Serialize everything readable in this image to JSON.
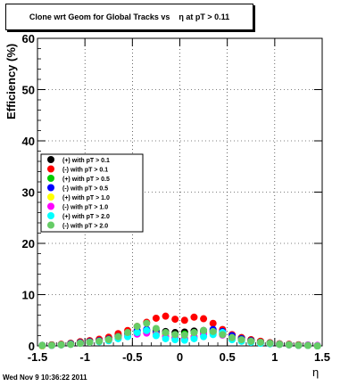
{
  "title": "Clone wrt Geom for Global Tracks vs    η at pT > 0.11",
  "timestamp": "Wed Nov  9 10:36:22 2011",
  "chart_data": {
    "type": "scatter",
    "title": "Clone wrt Geom for Global Tracks vs    η at pT > 0.11",
    "xlabel": "η",
    "ylabel": "Efficiency (%)",
    "xlim": [
      -1.5,
      1.5
    ],
    "ylim": [
      0,
      60
    ],
    "x_ticks": [
      -1.5,
      -1,
      -0.5,
      0,
      0.5,
      1,
      1.5
    ],
    "x_tick_labels": [
      "-1.5",
      "-1",
      "-0.5",
      "0",
      "0.5",
      "1",
      "1.5"
    ],
    "y_ticks": [
      0,
      10,
      20,
      30,
      40,
      50,
      60
    ],
    "grid": true,
    "legend_position": "left",
    "x": [
      -1.45,
      -1.35,
      -1.25,
      -1.15,
      -1.05,
      -0.95,
      -0.85,
      -0.75,
      -0.65,
      -0.55,
      -0.45,
      -0.35,
      -0.25,
      -0.15,
      -0.05,
      0.05,
      0.15,
      0.25,
      0.35,
      0.45,
      0.55,
      0.65,
      0.75,
      0.85,
      0.95,
      1.05,
      1.15,
      1.25,
      1.35,
      1.45
    ],
    "series": [
      {
        "name": "(+) with pT > 0.1",
        "color": "#000000",
        "values": [
          0.1,
          0.2,
          0.3,
          0.5,
          0.8,
          1.0,
          1.2,
          1.5,
          2.0,
          2.4,
          2.8,
          3.0,
          3.0,
          2.8,
          2.6,
          2.7,
          2.9,
          3.0,
          2.9,
          2.6,
          2.1,
          1.6,
          1.2,
          0.9,
          0.6,
          0.4,
          0.3,
          0.2,
          0.1,
          0.0
        ]
      },
      {
        "name": "(-) with pT > 0.1",
        "color": "#ff0000",
        "values": [
          0.1,
          0.2,
          0.3,
          0.5,
          0.8,
          1.0,
          1.3,
          1.7,
          2.4,
          3.0,
          3.8,
          4.6,
          5.4,
          5.8,
          5.2,
          5.0,
          5.6,
          5.3,
          4.4,
          3.2,
          2.2,
          1.6,
          1.2,
          0.9,
          0.6,
          0.4,
          0.3,
          0.2,
          0.1,
          0.0
        ]
      },
      {
        "name": "(+) with pT > 0.5",
        "color": "#00cc00",
        "values": [
          0.0,
          0.1,
          0.2,
          0.4,
          0.6,
          0.8,
          1.0,
          1.3,
          1.8,
          2.2,
          2.6,
          2.8,
          2.7,
          2.4,
          2.2,
          2.3,
          2.6,
          2.8,
          2.7,
          2.4,
          1.9,
          1.4,
          1.0,
          0.7,
          0.5,
          0.3,
          0.2,
          0.1,
          0.1,
          0.0
        ]
      },
      {
        "name": "(-) with pT > 0.5",
        "color": "#0000ff",
        "values": [
          0.0,
          0.1,
          0.2,
          0.4,
          0.6,
          0.8,
          1.0,
          1.3,
          1.8,
          2.4,
          3.0,
          3.2,
          2.6,
          2.0,
          1.6,
          1.4,
          1.8,
          2.6,
          3.2,
          2.8,
          2.0,
          1.4,
          1.0,
          0.7,
          0.5,
          0.3,
          0.2,
          0.1,
          0.1,
          0.0
        ]
      },
      {
        "name": "(+) with pT > 1.0",
        "color": "#ffff00",
        "values": [
          0.0,
          0.1,
          0.2,
          0.3,
          0.5,
          0.7,
          0.9,
          1.2,
          1.6,
          2.0,
          2.4,
          2.6,
          2.2,
          2.0,
          1.6,
          1.5,
          1.8,
          2.4,
          2.6,
          2.2,
          1.6,
          1.1,
          0.8,
          0.6,
          0.4,
          0.3,
          0.2,
          0.1,
          0.1,
          0.0
        ]
      },
      {
        "name": "(-) with pT > 1.0",
        "color": "#ff00ff",
        "values": [
          0.1,
          0.1,
          0.2,
          0.3,
          0.5,
          0.7,
          0.9,
          1.1,
          1.5,
          1.9,
          2.3,
          2.5,
          2.1,
          1.8,
          1.5,
          1.4,
          1.7,
          2.2,
          2.5,
          2.1,
          1.5,
          1.1,
          0.8,
          0.6,
          0.4,
          0.3,
          0.2,
          0.1,
          0.2,
          0.1
        ]
      },
      {
        "name": "(+) with pT > 2.0",
        "color": "#00ffff",
        "values": [
          0.1,
          0.1,
          0.2,
          0.3,
          0.5,
          0.7,
          0.8,
          1.0,
          1.4,
          1.8,
          2.6,
          3.0,
          2.0,
          1.4,
          1.2,
          1.1,
          1.4,
          1.8,
          2.2,
          2.6,
          1.2,
          0.9,
          0.7,
          0.5,
          0.4,
          0.3,
          0.2,
          0.1,
          0.1,
          0.0
        ]
      },
      {
        "name": "(-) with pT > 2.0",
        "color": "#66cc66",
        "values": [
          0.1,
          0.1,
          0.2,
          0.3,
          0.5,
          0.7,
          0.9,
          1.2,
          1.8,
          2.6,
          3.8,
          4.4,
          3.4,
          2.6,
          2.2,
          2.1,
          2.6,
          3.0,
          2.8,
          2.2,
          1.6,
          1.2,
          0.9,
          0.7,
          0.5,
          0.3,
          0.2,
          0.1,
          0.1,
          0.0
        ]
      }
    ]
  }
}
